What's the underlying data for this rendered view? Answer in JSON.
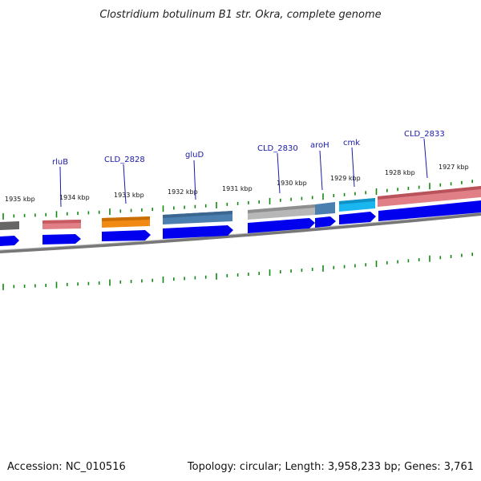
{
  "title": "Clostridium botulinum B1 str. Okra, complete genome",
  "footer": {
    "accession": "Accession: NC_010516",
    "summary": "Topology: circular; Length: 3,958,233 bp; Genes: 3,761"
  },
  "kbp_labels": [
    "1935 kbp",
    "1934 kbp",
    "1933 kbp",
    "1932 kbp",
    "1931 kbp",
    "1930 kbp",
    "1929 kbp",
    "1928 kbp",
    "1927 kbp"
  ],
  "gene_labels": [
    "rluB",
    "CLD_2828",
    "gluD",
    "CLD_2830",
    "aroH",
    "cmk",
    "CLD_2833"
  ],
  "colors": {
    "cds": "#0000ee",
    "gc_skew": "#118811",
    "backbone": "#8a8a8a",
    "rluB": "#e07f86",
    "CLD_2828": "#f08a12",
    "gluD": "#4a7fb0",
    "CLD_2830": "#b7b7b7",
    "aroH": "#4a7fb0",
    "cmk": "#1ab6f0",
    "CLD_2833": "#e07f86",
    "unlabeled_left": "#666666"
  }
}
